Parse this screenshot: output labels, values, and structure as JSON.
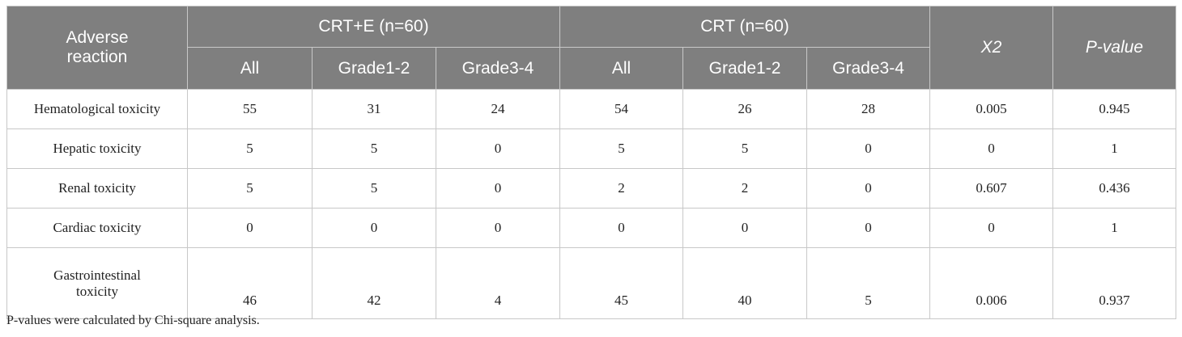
{
  "table": {
    "header": {
      "title": "Adverse reaction",
      "groups": [
        {
          "label": "CRT+E (n=60)",
          "columns": [
            "All",
            "Grade1-2",
            "Grade3-4"
          ]
        },
        {
          "label": "CRT (n=60)",
          "columns": [
            "All",
            "Grade1-2",
            "Grade3-4"
          ]
        }
      ],
      "x2": "X2",
      "p_value": "P-value"
    },
    "rows": [
      {
        "label": "Hematological toxicity",
        "cells": [
          55,
          31,
          24,
          54,
          26,
          28,
          0.005,
          0.945
        ]
      },
      {
        "label": "Hepatic toxicity",
        "cells": [
          5,
          5,
          0,
          5,
          5,
          0,
          0,
          1
        ]
      },
      {
        "label": "Renal toxicity",
        "cells": [
          5,
          5,
          0,
          2,
          2,
          0,
          0.607,
          0.436
        ]
      },
      {
        "label": "Cardiac toxicity",
        "cells": [
          0,
          0,
          0,
          0,
          0,
          0,
          0,
          1
        ]
      },
      {
        "label": "Gastrointestinal toxicity",
        "cells": [
          46,
          42,
          4,
          45,
          40,
          5,
          0.006,
          0.937
        ]
      }
    ]
  },
  "footnote": "P-values were calculated by Chi-square analysis."
}
